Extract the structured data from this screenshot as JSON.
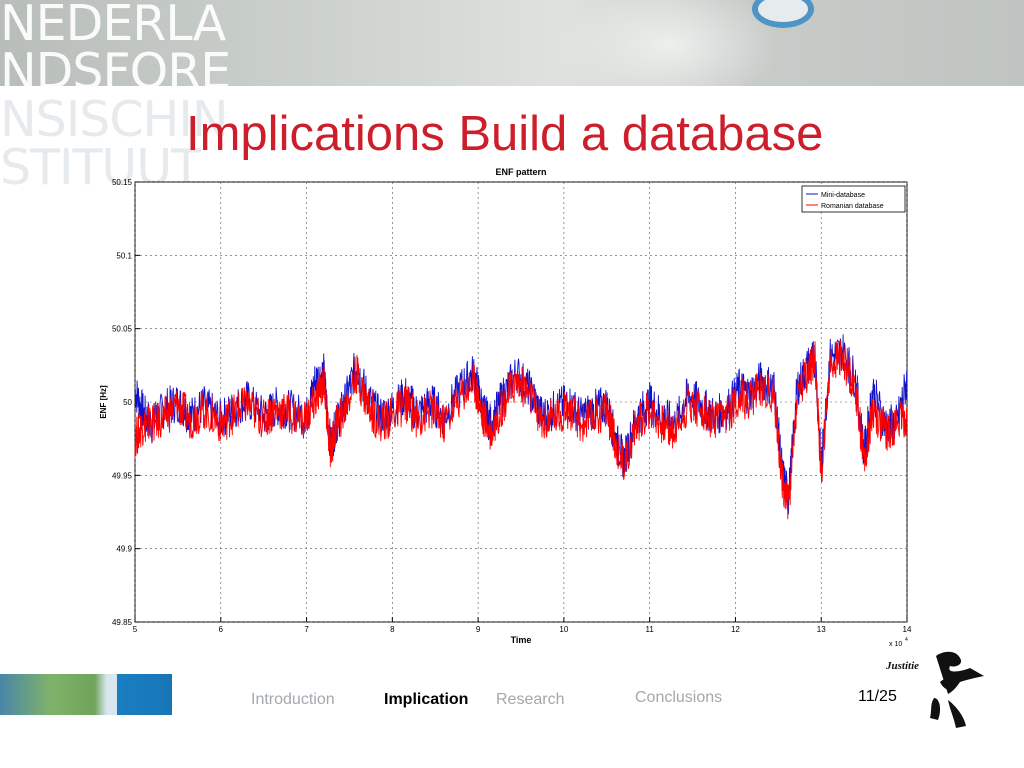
{
  "watermark": {
    "lines": [
      "NEDERLA",
      "NDSFORE",
      "NSISCHIN",
      "STITUUT"
    ]
  },
  "slide": {
    "title": "Implications Build a database"
  },
  "chart_data": {
    "type": "line",
    "title": "ENF pattern",
    "xlabel": "Time",
    "ylabel": "ENF [Hz]",
    "xlim": [
      5,
      14
    ],
    "ylim": [
      49.85,
      50.15
    ],
    "x_multiplier_label": "x 10",
    "x_multiplier_exponent": "4",
    "x_ticks": [
      5,
      6,
      7,
      8,
      9,
      10,
      11,
      12,
      13,
      14
    ],
    "y_ticks": [
      "49.85",
      "49.9",
      "49.95",
      "50",
      "50.05",
      "50.1",
      "50.15"
    ],
    "grid": true,
    "legend_position": "top-right",
    "x": [
      5.0,
      5.1,
      5.2,
      5.35,
      5.5,
      5.65,
      5.8,
      6.0,
      6.15,
      6.3,
      6.5,
      6.65,
      6.8,
      7.0,
      7.1,
      7.2,
      7.28,
      7.35,
      7.45,
      7.58,
      7.7,
      7.85,
      8.0,
      8.15,
      8.3,
      8.45,
      8.6,
      8.8,
      8.95,
      9.05,
      9.15,
      9.3,
      9.45,
      9.6,
      9.75,
      9.9,
      10.05,
      10.2,
      10.35,
      10.5,
      10.6,
      10.7,
      10.85,
      11.0,
      11.15,
      11.3,
      11.45,
      11.6,
      11.75,
      11.9,
      12.05,
      12.15,
      12.3,
      12.45,
      12.55,
      12.62,
      12.72,
      12.85,
      12.93,
      13.0,
      13.1,
      13.25,
      13.4,
      13.5,
      13.6,
      13.75,
      13.88,
      14.0
    ],
    "series": [
      {
        "name": "Mini-database",
        "color": "#1111cc",
        "values": [
          50.008,
          49.992,
          49.985,
          49.996,
          50.0,
          49.99,
          49.998,
          49.988,
          49.995,
          50.002,
          49.99,
          49.997,
          49.995,
          49.99,
          50.015,
          50.02,
          49.97,
          49.985,
          50.0,
          50.025,
          50.005,
          49.99,
          49.995,
          50.005,
          49.992,
          50.0,
          49.99,
          50.01,
          50.02,
          49.995,
          49.985,
          50.005,
          50.02,
          50.008,
          49.99,
          49.995,
          50.0,
          49.99,
          49.995,
          49.998,
          49.975,
          49.96,
          49.99,
          50.0,
          49.99,
          49.985,
          50.005,
          49.998,
          49.99,
          49.995,
          50.01,
          50.005,
          50.015,
          50.01,
          49.95,
          49.935,
          50.01,
          50.025,
          50.03,
          49.955,
          50.03,
          50.035,
          50.015,
          49.965,
          50.008,
          49.985,
          49.985,
          50.015
        ]
      },
      {
        "name": "Romanian database",
        "color": "#ff0000",
        "values": [
          49.975,
          49.985,
          49.985,
          49.99,
          49.998,
          49.988,
          49.995,
          49.985,
          49.992,
          49.998,
          49.988,
          49.995,
          49.992,
          49.988,
          50.0,
          50.015,
          49.965,
          49.985,
          49.995,
          50.02,
          50.0,
          49.985,
          49.99,
          50.0,
          49.988,
          49.995,
          49.985,
          50.005,
          50.015,
          49.99,
          49.98,
          50.0,
          50.015,
          50.005,
          49.985,
          49.99,
          49.995,
          49.985,
          49.99,
          49.995,
          49.972,
          49.958,
          49.985,
          49.995,
          49.985,
          49.98,
          50.0,
          49.995,
          49.985,
          49.99,
          50.005,
          50.0,
          50.01,
          50.005,
          49.945,
          49.93,
          50.005,
          50.02,
          50.03,
          49.95,
          50.025,
          50.03,
          50.01,
          49.96,
          49.995,
          49.98,
          49.985,
          49.99
        ]
      }
    ]
  },
  "footer": {
    "nav": [
      {
        "label": "Introduction",
        "active": false
      },
      {
        "label": "Implication",
        "active": true
      },
      {
        "label": "Research",
        "active": false
      },
      {
        "label": "Conclusions",
        "active": false
      }
    ],
    "page_number": "11/25",
    "logo_text": "Justitie"
  }
}
